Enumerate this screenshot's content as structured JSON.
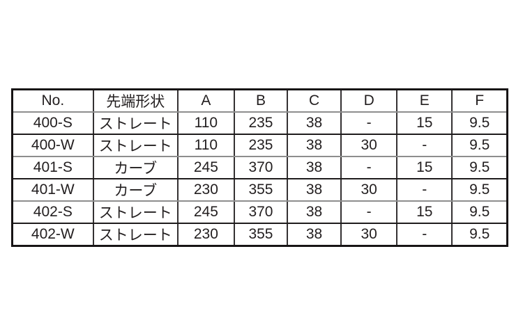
{
  "table": {
    "columns": [
      "No.",
      "先端形状",
      "A",
      "B",
      "C",
      "D",
      "E",
      "F"
    ],
    "rows": [
      [
        "400-S",
        "ストレート",
        "110",
        "235",
        "38",
        "-",
        "15",
        "9.5"
      ],
      [
        "400-W",
        "ストレート",
        "110",
        "235",
        "38",
        "30",
        "-",
        "9.5"
      ],
      [
        "401-S",
        "カーブ",
        "245",
        "370",
        "38",
        "-",
        "15",
        "9.5"
      ],
      [
        "401-W",
        "カーブ",
        "230",
        "355",
        "38",
        "30",
        "-",
        "9.5"
      ],
      [
        "402-S",
        "ストレート",
        "245",
        "370",
        "38",
        "-",
        "15",
        "9.5"
      ],
      [
        "402-W",
        "ストレート",
        "230",
        "355",
        "38",
        "30",
        "-",
        "9.5"
      ]
    ]
  },
  "colors": {
    "background": "#ffffff",
    "text": "#221e1f",
    "outer_border": "#171415",
    "inner_vertical_rule": "#343132",
    "inner_rule_dark": "#1e1b1c",
    "inner_rule_light": "#8d8d8d"
  }
}
